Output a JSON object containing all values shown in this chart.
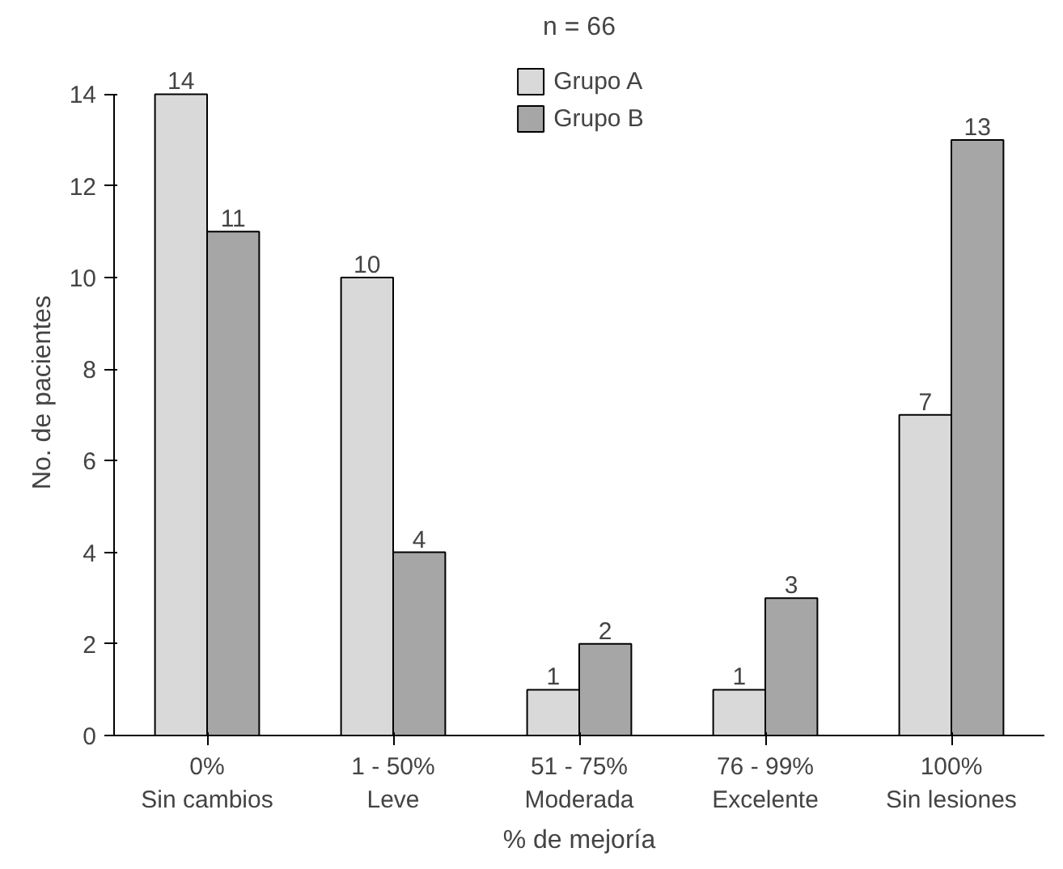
{
  "chart_data": {
    "type": "bar",
    "title": "n = 66",
    "xlabel": "% de mejoría",
    "ylabel": "No. de pacientes",
    "categories": [
      "0%\nSin cambios",
      "1 - 50%\nLeve",
      "51 - 75%\nModerada",
      "76 - 99%\nExcelente",
      "100%\nSin lesiones"
    ],
    "series": [
      {
        "name": "Grupo A",
        "color": "#d9d9d9",
        "values": [
          14,
          10,
          1,
          1,
          7
        ]
      },
      {
        "name": "Grupo B",
        "color": "#a6a6a6",
        "values": [
          11,
          4,
          2,
          3,
          13
        ]
      }
    ],
    "ylim": [
      0,
      14
    ],
    "yticks": [
      0,
      2,
      4,
      6,
      8,
      10,
      12,
      14
    ],
    "grid": false,
    "legend": "top right",
    "data_labels": true
  }
}
